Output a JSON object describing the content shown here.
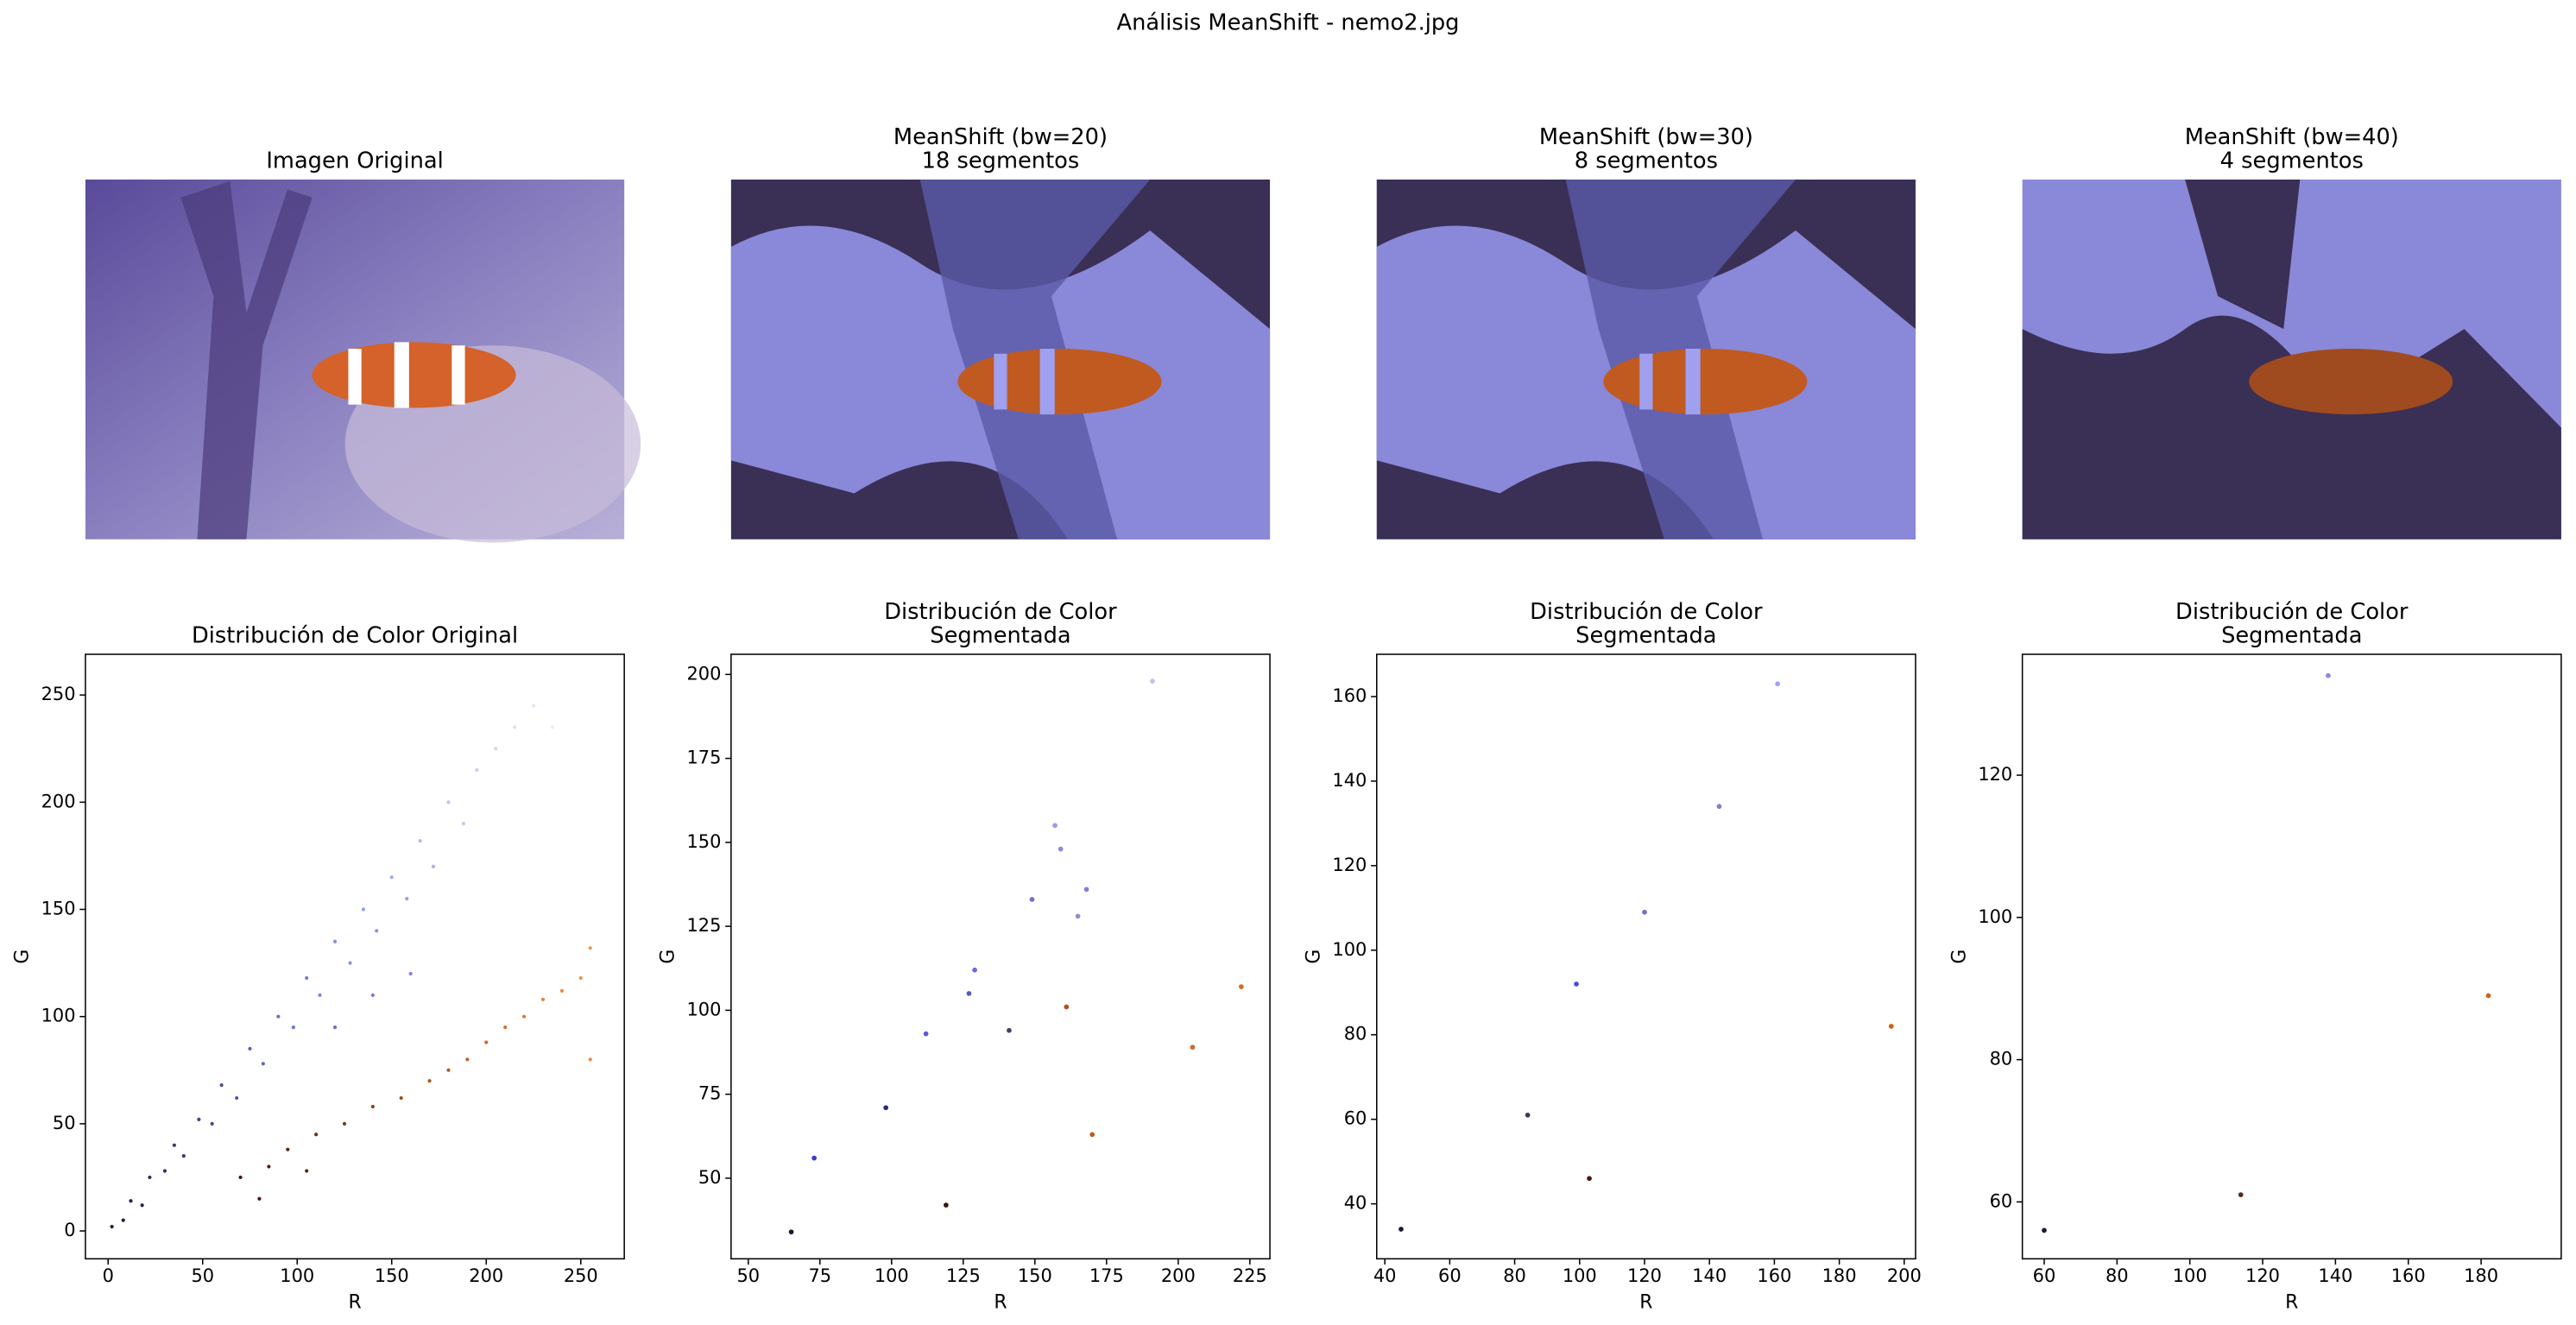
{
  "title": "Análisis MeanShift - nemo2.jpg",
  "images": [
    {
      "title": [
        "Imagen Original"
      ]
    },
    {
      "title": [
        "MeanShift (bw=20)",
        "18 segmentos"
      ]
    },
    {
      "title": [
        "MeanShift (bw=30)",
        "8 segmentos"
      ]
    },
    {
      "title": [
        "MeanShift (bw=40)",
        "4 segmentos"
      ]
    }
  ],
  "chart_data": [
    {
      "type": "scatter",
      "title": [
        "Distribución de Color Original"
      ],
      "x_label": "R",
      "y_label": "G",
      "x": [
        2,
        8,
        12,
        18,
        22,
        30,
        35,
        40,
        48,
        55,
        60,
        68,
        75,
        82,
        90,
        98,
        105,
        112,
        120,
        128,
        135,
        142,
        150,
        158,
        165,
        172,
        180,
        188,
        195,
        205,
        215,
        225,
        235,
        160,
        140,
        120,
        70,
        85,
        95,
        110,
        125,
        140,
        155,
        170,
        180,
        190,
        200,
        210,
        220,
        230,
        240,
        250,
        255,
        255,
        80,
        105
      ],
      "y": [
        2,
        5,
        14,
        12,
        25,
        28,
        40,
        35,
        52,
        50,
        68,
        62,
        85,
        78,
        100,
        95,
        118,
        110,
        135,
        125,
        150,
        140,
        165,
        155,
        182,
        170,
        200,
        190,
        215,
        225,
        235,
        245,
        235,
        120,
        110,
        95,
        25,
        30,
        38,
        45,
        50,
        58,
        62,
        70,
        75,
        80,
        88,
        95,
        100,
        108,
        112,
        118,
        132,
        80,
        15,
        28
      ],
      "colors": [
        "#1a1530",
        "#221c3d",
        "#262048",
        "#2a2450",
        "#2e2a5a",
        "#333063",
        "#38386e",
        "#3a3a72",
        "#404280",
        "#454a8c",
        "#4b5296",
        "#5058a0",
        "#5862ae",
        "#5e68b6",
        "#6670c0",
        "#6c78c8",
        "#7480d0",
        "#7a86d6",
        "#8290dc",
        "#8a96e0",
        "#929ee4",
        "#9a8ae8",
        "#a2ace8",
        "#a898ec",
        "#b0b8ec",
        "#b4aaee",
        "#bcc4f0",
        "#c0c8f0",
        "#c8d0f2",
        "#d0d8f4",
        "#d8e0f6",
        "#e0e8f8",
        "#e4ecf8",
        "#9878e0",
        "#8a70d8",
        "#7c66cc",
        "#3a1a10",
        "#4a2212",
        "#582a14",
        "#6a3216",
        "#7a3a18",
        "#8c421a",
        "#9c4a1c",
        "#ac521e",
        "#b85a22",
        "#c46226",
        "#cc6a2a",
        "#d4722e",
        "#dc7a34",
        "#e4843a",
        "#e88c40",
        "#ec9448",
        "#ee9a50",
        "#e88848",
        "#40180e",
        "#5a2814"
      ],
      "xlim": [
        -12,
        273
      ],
      "ylim": [
        -13,
        269
      ],
      "xticks": [
        0,
        50,
        100,
        150,
        200,
        250
      ],
      "yticks": [
        0,
        50,
        100,
        150,
        200,
        250
      ]
    },
    {
      "type": "scatter",
      "title": [
        "Distribución de Color",
        "Segmentada"
      ],
      "x_label": "R",
      "y_label": "G",
      "x": [
        65,
        73,
        98,
        112,
        119,
        127,
        129,
        141,
        149,
        157,
        159,
        161,
        165,
        168,
        170,
        191,
        205,
        222
      ],
      "y": [
        34,
        56,
        71,
        93,
        42,
        105,
        112,
        94,
        133,
        155,
        148,
        101,
        128,
        136,
        63,
        198,
        89,
        107
      ],
      "colors": [
        "#1c1830",
        "#3a3ad0",
        "#2a2a80",
        "#5a5ad8",
        "#3a1810",
        "#5858c0",
        "#6a6ae0",
        "#40406a",
        "#7070c8",
        "#9a9ae8",
        "#8a8ae0",
        "#b05020",
        "#9090d0",
        "#8080d8",
        "#c05a18",
        "#c0c0f0",
        "#c86a30",
        "#d86a20"
      ],
      "xlim": [
        44,
        232
      ],
      "ylim": [
        26,
        206
      ],
      "xticks": [
        50,
        75,
        100,
        125,
        150,
        175,
        200,
        225
      ],
      "yticks": [
        50,
        75,
        100,
        125,
        150,
        175,
        200
      ]
    },
    {
      "type": "scatter",
      "title": [
        "Distribución de Color",
        "Segmentada"
      ],
      "x_label": "R",
      "y_label": "G",
      "x": [
        45,
        84,
        99,
        103,
        120,
        143,
        161,
        196
      ],
      "y": [
        34,
        61,
        92,
        46,
        109,
        134,
        163,
        82
      ],
      "colors": [
        "#1c1830",
        "#3a3a60",
        "#4a4ae0",
        "#4a1a10",
        "#7070d0",
        "#8080c8",
        "#a0a0f0",
        "#d06018"
      ],
      "xlim": [
        37.5,
        203.5
      ],
      "ylim": [
        27,
        170
      ],
      "xticks": [
        40,
        60,
        80,
        100,
        120,
        140,
        160,
        180,
        200
      ],
      "yticks": [
        40,
        60,
        80,
        100,
        120,
        140,
        160
      ]
    },
    {
      "type": "scatter",
      "title": [
        "Distribución de Color",
        "Segmentada"
      ],
      "x_label": "R",
      "y_label": "G",
      "x": [
        60,
        114,
        138,
        182
      ],
      "y": [
        56,
        61,
        134,
        89
      ],
      "colors": [
        "#1c1830",
        "#5a2a14",
        "#8a8ae0",
        "#d06018"
      ],
      "xlim": [
        54,
        202
      ],
      "ylim": [
        52,
        137
      ],
      "xticks": [
        60,
        80,
        100,
        120,
        140,
        160,
        180
      ],
      "yticks": [
        60,
        80,
        100,
        120
      ]
    }
  ]
}
